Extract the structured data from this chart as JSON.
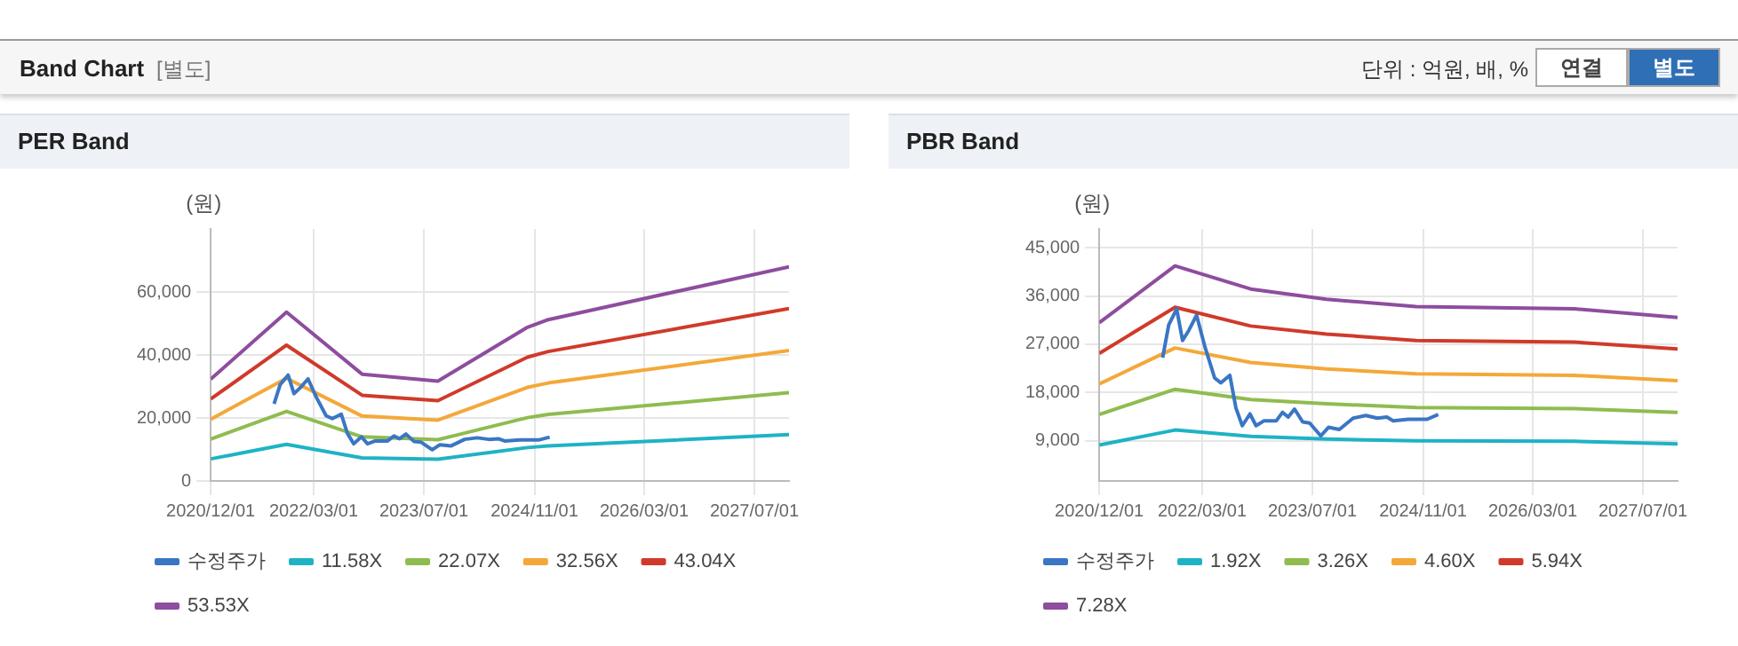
{
  "chart_data": [
    {
      "type": "line",
      "title": "PER Band",
      "ylabel": "(원)",
      "annotations": [
        "Band Chart",
        "[별도]",
        "단위 : 억원, 배, %",
        "연결",
        "별도"
      ],
      "x": [
        "2020-12-01",
        "2021-11-01",
        "2022-10-01",
        "2023-09-01",
        "2024-10-01",
        "2025-01-01",
        "2027-12-01"
      ],
      "xlim": [
        "2020-12-01",
        "2027-12-01"
      ],
      "xticks": [
        {
          "value": "2020-12-01",
          "label": "2020/12/01"
        },
        {
          "value": "2022-03-01",
          "label": "2022/03/01"
        },
        {
          "value": "2023-07-01",
          "label": "2023/07/01"
        },
        {
          "value": "2024-11-01",
          "label": "2024/11/01"
        },
        {
          "value": "2026-03-01",
          "label": "2026/03/01"
        },
        {
          "value": "2027-07-01",
          "label": "2027/07/01"
        }
      ],
      "ylim": [
        0,
        80000
      ],
      "yticks": [
        {
          "value": 0,
          "label": "0"
        },
        {
          "value": 20000,
          "label": "20,000"
        },
        {
          "value": 40000,
          "label": "40,000"
        },
        {
          "value": 60000,
          "label": "60,000"
        }
      ],
      "grid": true,
      "legend": "bottom",
      "marker": "none",
      "line_style": "solid",
      "series": [
        {
          "name": "수정주가",
          "color": "#3a76c4",
          "x": [
            "2021-09-07",
            "2021-10-04",
            "2021-11-08",
            "2021-12-04",
            "2022-01-01",
            "2022-02-04",
            "2022-03-13",
            "2022-04-25",
            "2022-05-22",
            "2022-07-01",
            "2022-07-28",
            "2022-08-25",
            "2022-09-28",
            "2022-10-25",
            "2022-11-28",
            "2023-01-22",
            "2023-02-19",
            "2023-03-16",
            "2023-04-13",
            "2023-05-19",
            "2023-06-19",
            "2023-08-07",
            "2023-09-10",
            "2023-10-28",
            "2023-12-28",
            "2024-02-22",
            "2024-04-13",
            "2024-05-25",
            "2024-06-22",
            "2024-08-28",
            "2024-11-19",
            "2025-01-07"
          ],
          "values": [
            24500,
            30600,
            33600,
            27700,
            29600,
            32400,
            26500,
            20700,
            19800,
            21200,
            15100,
            11800,
            14000,
            11800,
            12700,
            12700,
            14300,
            13400,
            14900,
            12500,
            12300,
            9900,
            11500,
            11100,
            13200,
            13700,
            13200,
            13400,
            12700,
            13000,
            13000,
            13900
          ]
        },
        {
          "name": "11.58X",
          "color": "#1eb3c4",
          "values": [
            7000,
            11600,
            7300,
            6900,
            10600,
            11100,
            14700
          ]
        },
        {
          "name": "22.07X",
          "color": "#8fbc4f",
          "values": [
            13300,
            22100,
            14000,
            13100,
            20100,
            21100,
            28000
          ]
        },
        {
          "name": "32.56X",
          "color": "#f4a83a",
          "values": [
            19600,
            32600,
            20600,
            19300,
            29700,
            31100,
            41400
          ]
        },
        {
          "name": "43.04X",
          "color": "#d03a2a",
          "values": [
            26000,
            43100,
            27200,
            25500,
            39300,
            41100,
            54700
          ]
        },
        {
          "name": "53.53X",
          "color": "#8e4d9e",
          "values": [
            32300,
            53600,
            33900,
            31700,
            48800,
            51200,
            68000
          ]
        }
      ]
    },
    {
      "type": "line",
      "title": "PBR Band",
      "ylabel": "(원)",
      "x": [
        "2020-12-01",
        "2021-11-01",
        "2022-10-01",
        "2023-09-01",
        "2024-10-01",
        "2026-09-01",
        "2027-12-01"
      ],
      "xlim": [
        "2020-12-01",
        "2027-12-01"
      ],
      "xticks": [
        {
          "value": "2020-12-01",
          "label": "2020/12/01"
        },
        {
          "value": "2022-03-01",
          "label": "2022/03/01"
        },
        {
          "value": "2023-07-01",
          "label": "2023/07/01"
        },
        {
          "value": "2024-11-01",
          "label": "2024/11/01"
        },
        {
          "value": "2026-03-01",
          "label": "2026/03/01"
        },
        {
          "value": "2027-07-01",
          "label": "2027/07/01"
        }
      ],
      "ylim": [
        1500,
        48500
      ],
      "yticks": [
        {
          "value": 9000,
          "label": "9,000"
        },
        {
          "value": 18000,
          "label": "18,000"
        },
        {
          "value": 27000,
          "label": "27,000"
        },
        {
          "value": 36000,
          "label": "36,000"
        },
        {
          "value": 45000,
          "label": "45,000"
        }
      ],
      "grid": true,
      "legend": "bottom",
      "marker": "none",
      "line_style": "solid",
      "series": [
        {
          "name": "수정주가",
          "color": "#3a76c4",
          "x": [
            "2021-09-07",
            "2021-10-04",
            "2021-11-08",
            "2021-12-04",
            "2022-01-01",
            "2022-02-04",
            "2022-03-13",
            "2022-04-25",
            "2022-05-22",
            "2022-07-01",
            "2022-07-28",
            "2022-08-25",
            "2022-09-28",
            "2022-10-25",
            "2022-11-28",
            "2023-01-22",
            "2023-02-19",
            "2023-03-16",
            "2023-04-13",
            "2023-05-19",
            "2023-06-19",
            "2023-08-07",
            "2023-09-10",
            "2023-10-28",
            "2023-12-28",
            "2024-02-22",
            "2024-04-13",
            "2024-05-25",
            "2024-06-22",
            "2024-08-28",
            "2024-11-19",
            "2025-01-07"
          ],
          "values": [
            24500,
            30600,
            33600,
            27700,
            29600,
            32400,
            26500,
            20700,
            19800,
            21200,
            15100,
            11800,
            14000,
            11800,
            12700,
            12700,
            14300,
            13400,
            14900,
            12500,
            12300,
            9900,
            11500,
            11100,
            13200,
            13700,
            13200,
            13400,
            12700,
            13000,
            13000,
            13900
          ]
        },
        {
          "name": "1.92X",
          "color": "#1eb3c4",
          "values": [
            8200,
            11000,
            9800,
            9300,
            9000,
            8900,
            8400
          ]
        },
        {
          "name": "3.26X",
          "color": "#8fbc4f",
          "values": [
            13900,
            18600,
            16700,
            15900,
            15200,
            15000,
            14300
          ]
        },
        {
          "name": "4.60X",
          "color": "#f4a83a",
          "values": [
            19600,
            26300,
            23600,
            22400,
            21500,
            21200,
            20200
          ]
        },
        {
          "name": "5.94X",
          "color": "#d03a2a",
          "values": [
            25300,
            33900,
            30400,
            28900,
            27700,
            27400,
            26100
          ]
        },
        {
          "name": "7.28X",
          "color": "#8e4d9e",
          "values": [
            31000,
            41600,
            37300,
            35400,
            34000,
            33600,
            32000
          ]
        }
      ]
    }
  ]
}
